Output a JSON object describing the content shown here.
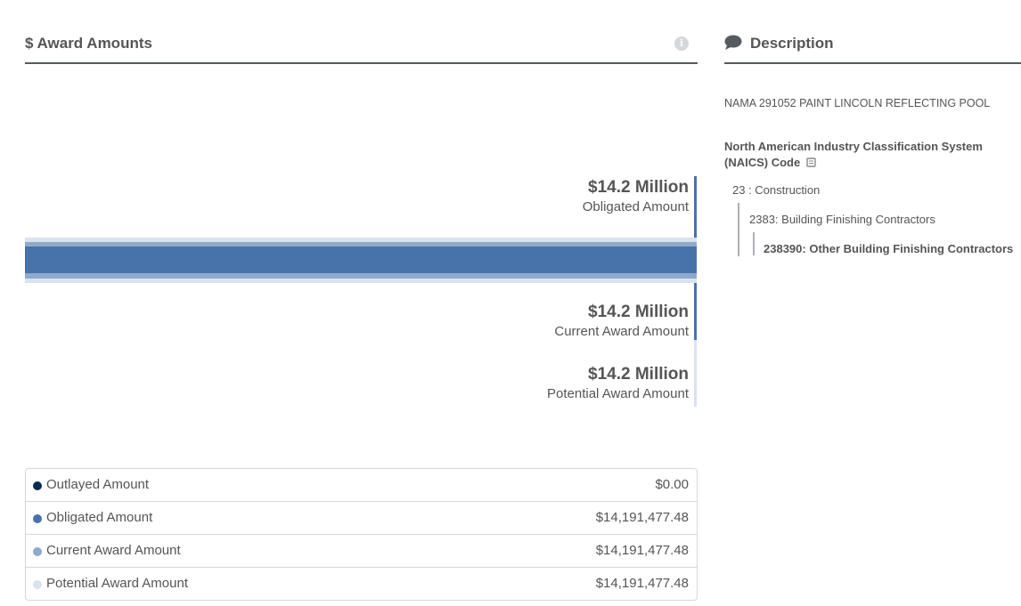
{
  "award_amounts": {
    "title": "$ Award Amounts",
    "info_icon": "info-icon",
    "obligated": {
      "amount": "$14.2 Million",
      "label": "Obligated Amount"
    },
    "current": {
      "amount": "$14.2 Million",
      "label": "Current Award Amount"
    },
    "potential": {
      "amount": "$14.2 Million",
      "label": "Potential Award Amount"
    },
    "colors": {
      "outlayed": "#0b2a50",
      "obligated": "#4773aa",
      "current": "#8fa9cb",
      "potential": "#d9e2ef"
    },
    "legend": [
      {
        "label": "Outlayed Amount",
        "value": "$0.00",
        "color": "#0b2a50"
      },
      {
        "label": "Obligated Amount",
        "value": "$14,191,477.48",
        "color": "#4773aa"
      },
      {
        "label": "Current Award Amount",
        "value": "$14,191,477.48",
        "color": "#8fa9cb"
      },
      {
        "label": "Potential Award Amount",
        "value": "$14,191,477.48",
        "color": "#d9e2ef"
      }
    ]
  },
  "description": {
    "title": "Description",
    "icon": "comment-icon",
    "text": "NAMA 291052 PAINT LINCOLN REFLECTING POOL",
    "naics_heading_line1": "North American Industry Classification System",
    "naics_heading_line2": "(NAICS) Code",
    "naics_book_icon": "book-icon",
    "naics": {
      "level1": "23 : Construction",
      "level2": "2383: Building Finishing Contractors",
      "level3_code": "238390:",
      "level3_name": "Other Building Finishing Contractors"
    }
  }
}
